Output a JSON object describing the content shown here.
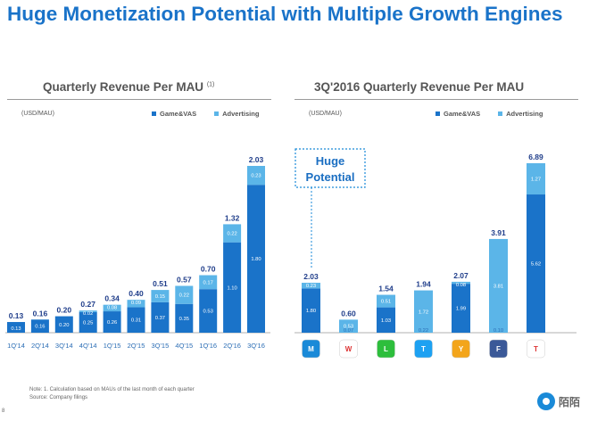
{
  "title": "Huge Monetization Potential with Multiple Growth Engines",
  "page_number": "8",
  "footnote": {
    "note": "Note: 1. Calculation based on MAUs of the last month of each quarter",
    "source": "Source: Company filings"
  },
  "brand": {
    "logo_text": "陌陌",
    "primary_color": "#1a73c9",
    "secondary_color": "#5bb5e8"
  },
  "callout": {
    "line1": "Huge",
    "line2": "Potential"
  },
  "chart_data": [
    {
      "type": "bar",
      "stacked": true,
      "title": "Quarterly Revenue Per MAU",
      "title_superscript": "(1)",
      "unit": "(USD/MAU)",
      "categories": [
        "1Q'14",
        "2Q'14",
        "3Q'14",
        "4Q'14",
        "1Q'15",
        "2Q'15",
        "3Q'15",
        "4Q'15",
        "1Q'16",
        "2Q'16",
        "3Q'16"
      ],
      "series": [
        {
          "name": "Game&VAS",
          "color": "#1a73c9",
          "values": [
            0.13,
            0.16,
            0.2,
            0.25,
            0.26,
            0.31,
            0.37,
            0.35,
            0.53,
            1.1,
            1.8
          ],
          "labels": [
            "0.13",
            "0.16",
            "0.20",
            "0.25",
            "0.26",
            "0.31",
            "0.37",
            "0.35",
            "0.53",
            "1.10",
            "1.80"
          ]
        },
        {
          "name": "Advertising",
          "color": "#5bb5e8",
          "values": [
            0,
            0,
            0,
            0.02,
            0.08,
            0.09,
            0.15,
            0.22,
            0.17,
            0.22,
            0.23
          ],
          "labels": [
            "",
            "",
            "",
            "0.02",
            "0.08",
            "0.09",
            "0.15",
            "0.22",
            "0.17",
            "0.22",
            "0.23"
          ]
        }
      ],
      "totals": [
        "0.13",
        "0.16",
        "0.20",
        "0.27",
        "0.34",
        "0.40",
        "0.51",
        "0.57",
        "0.70",
        "1.32",
        "2.03"
      ],
      "ylim": [
        0,
        2.25
      ]
    },
    {
      "type": "bar",
      "stacked": true,
      "title": "3Q'2016 Quarterly Revenue Per MAU",
      "unit": "(USD/MAU)",
      "categories": [
        "Momo",
        "Weibo",
        "LINE",
        "Twitter",
        "YY",
        "Facebook",
        "Tencent"
      ],
      "icons": [
        "momo-icon",
        "weibo-icon",
        "line-icon",
        "twitter-icon",
        "yy-icon",
        "facebook-icon",
        "tencent-icon"
      ],
      "series": [
        {
          "name": "Game&VAS",
          "color": "#1a73c9",
          "values": [
            1.8,
            0,
            1.03,
            0,
            1.99,
            0,
            5.62
          ],
          "labels": [
            "1.80",
            "",
            "1.03",
            "",
            "1.99",
            "",
            "5.62"
          ]
        },
        {
          "name": "Advertising",
          "color": "#5bb5e8",
          "values": [
            0.23,
            0.53,
            0.51,
            1.72,
            0.08,
            3.81,
            1.27
          ],
          "labels": [
            "0.23",
            "0.53",
            "0.51",
            "1.72",
            "0.08",
            "3.81",
            "1.27"
          ]
        }
      ],
      "totals": [
        "2.03",
        "0.60",
        "1.54",
        "1.94",
        "2.07",
        "3.91",
        "6.89"
      ],
      "small_labels": [
        "",
        "0.07",
        "",
        "0.22",
        "",
        "0.10",
        ""
      ],
      "ylim": [
        0,
        7.2
      ]
    }
  ]
}
